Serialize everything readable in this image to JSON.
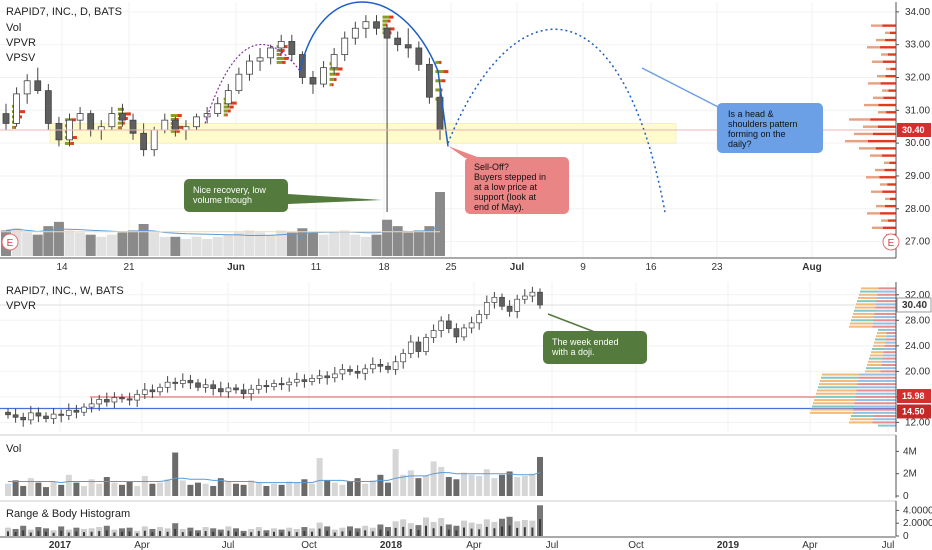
{
  "colors": {
    "up": "#d0d0d0",
    "down": "#5f5f5f",
    "grid": "#f2f2f2",
    "axis": "#555555",
    "zone": "#fffbcc",
    "vp_green": "#8a9a22",
    "vp_red": "#e03a1e",
    "note_green": "#547b3d",
    "note_red": "#ea8585",
    "note_blue": "#6b9fe6",
    "vol_ma": "#5b9bd5",
    "price_red": "#d32f2f",
    "price_line": "#c9a227",
    "blue_line": "#4a6fd9",
    "red_line": "#e05050",
    "arc_purple": "#8a2fa0",
    "arc_blue": "#1e5fc4"
  },
  "chart_data": [
    {
      "type": "candlestick",
      "header": "RAPID7, INC., D, BATS",
      "indicators": [
        "Vol",
        "VPVR",
        "VPSV"
      ],
      "x_ticks": [
        "14",
        "21",
        "Jun",
        "11",
        "18",
        "25",
        "Jul",
        "9",
        "16",
        "23",
        "Aug"
      ],
      "y_ticks": [
        27.0,
        28.0,
        29.0,
        30.0,
        31.0,
        32.0,
        33.0,
        34.0
      ],
      "ylim": [
        26.5,
        34.3
      ],
      "last_price": "30.40",
      "support_zone": [
        30.0,
        30.6
      ],
      "volume_high": 3.0,
      "candles": [
        {
          "o": 30.9,
          "h": 31.2,
          "l": 30.4,
          "c": 30.6,
          "v": 1.2
        },
        {
          "o": 30.6,
          "h": 31.7,
          "l": 30.5,
          "c": 31.5,
          "v": 1.3
        },
        {
          "o": 31.5,
          "h": 32.1,
          "l": 31.2,
          "c": 31.9,
          "v": 1.1
        },
        {
          "o": 31.9,
          "h": 32.3,
          "l": 31.5,
          "c": 31.6,
          "v": 1.0
        },
        {
          "o": 31.6,
          "h": 31.8,
          "l": 30.4,
          "c": 30.6,
          "v": 1.4
        },
        {
          "o": 30.6,
          "h": 30.8,
          "l": 29.9,
          "c": 30.1,
          "v": 1.6
        },
        {
          "o": 30.1,
          "h": 30.9,
          "l": 29.9,
          "c": 30.7,
          "v": 1.2
        },
        {
          "o": 30.7,
          "h": 31.1,
          "l": 30.4,
          "c": 30.9,
          "v": 1.1
        },
        {
          "o": 30.9,
          "h": 31.0,
          "l": 30.2,
          "c": 30.4,
          "v": 1.0
        },
        {
          "o": 30.4,
          "h": 30.7,
          "l": 30.1,
          "c": 30.5,
          "v": 0.9
        },
        {
          "o": 30.5,
          "h": 31.1,
          "l": 30.4,
          "c": 30.9,
          "v": 1.0
        },
        {
          "o": 30.9,
          "h": 31.2,
          "l": 30.5,
          "c": 30.7,
          "v": 1.1
        },
        {
          "o": 30.7,
          "h": 30.9,
          "l": 30.1,
          "c": 30.3,
          "v": 1.2
        },
        {
          "o": 30.3,
          "h": 30.6,
          "l": 29.6,
          "c": 29.8,
          "v": 1.5
        },
        {
          "o": 29.8,
          "h": 30.5,
          "l": 29.6,
          "c": 30.4,
          "v": 1.1
        },
        {
          "o": 30.4,
          "h": 30.9,
          "l": 30.3,
          "c": 30.7,
          "v": 0.9
        },
        {
          "o": 30.7,
          "h": 30.8,
          "l": 30.2,
          "c": 30.4,
          "v": 0.9
        },
        {
          "o": 30.4,
          "h": 30.7,
          "l": 30.1,
          "c": 30.5,
          "v": 0.8
        },
        {
          "o": 30.5,
          "h": 30.9,
          "l": 30.4,
          "c": 30.8,
          "v": 0.9
        },
        {
          "o": 30.8,
          "h": 31.1,
          "l": 30.6,
          "c": 30.9,
          "v": 0.8
        },
        {
          "o": 30.9,
          "h": 31.4,
          "l": 30.8,
          "c": 31.2,
          "v": 0.9
        },
        {
          "o": 31.2,
          "h": 31.8,
          "l": 31.1,
          "c": 31.6,
          "v": 1.0
        },
        {
          "o": 31.6,
          "h": 32.3,
          "l": 31.5,
          "c": 32.1,
          "v": 1.1
        },
        {
          "o": 32.1,
          "h": 32.7,
          "l": 31.9,
          "c": 32.5,
          "v": 1.2
        },
        {
          "o": 32.5,
          "h": 32.9,
          "l": 32.2,
          "c": 32.6,
          "v": 1.1
        },
        {
          "o": 32.6,
          "h": 33.0,
          "l": 32.4,
          "c": 32.9,
          "v": 1.0
        },
        {
          "o": 32.9,
          "h": 33.3,
          "l": 32.7,
          "c": 33.1,
          "v": 1.2
        },
        {
          "o": 33.1,
          "h": 33.3,
          "l": 32.5,
          "c": 32.7,
          "v": 1.1
        },
        {
          "o": 32.7,
          "h": 32.8,
          "l": 31.8,
          "c": 32.0,
          "v": 1.3
        },
        {
          "o": 32.0,
          "h": 32.2,
          "l": 31.5,
          "c": 31.8,
          "v": 1.1
        },
        {
          "o": 31.8,
          "h": 32.5,
          "l": 31.7,
          "c": 32.3,
          "v": 1.0
        },
        {
          "o": 32.3,
          "h": 32.9,
          "l": 32.1,
          "c": 32.7,
          "v": 1.1
        },
        {
          "o": 32.7,
          "h": 33.4,
          "l": 32.5,
          "c": 33.2,
          "v": 1.2
        },
        {
          "o": 33.2,
          "h": 33.7,
          "l": 33.0,
          "c": 33.5,
          "v": 1.0
        },
        {
          "o": 33.5,
          "h": 33.9,
          "l": 33.2,
          "c": 33.7,
          "v": 0.9
        },
        {
          "o": 33.7,
          "h": 33.9,
          "l": 33.3,
          "c": 33.5,
          "v": 1.0
        },
        {
          "o": 33.5,
          "h": 33.6,
          "l": 27.9,
          "c": 33.2,
          "v": 1.7
        },
        {
          "o": 33.2,
          "h": 33.4,
          "l": 32.8,
          "c": 33.0,
          "v": 1.4
        },
        {
          "o": 33.0,
          "h": 33.5,
          "l": 32.6,
          "c": 32.9,
          "v": 1.1
        },
        {
          "o": 32.9,
          "h": 33.1,
          "l": 32.2,
          "c": 32.4,
          "v": 1.2
        },
        {
          "o": 32.4,
          "h": 32.6,
          "l": 31.2,
          "c": 31.4,
          "v": 1.4
        },
        {
          "o": 31.4,
          "h": 31.6,
          "l": 30.1,
          "c": 30.4,
          "v": 3.0
        }
      ]
    },
    {
      "type": "candlestick",
      "header": "RAPID7, INC., W, BATS",
      "indicators": [
        "VPVR"
      ],
      "x_ticks": [
        "2017",
        "Apr",
        "Jul",
        "Oct",
        "2018",
        "Apr",
        "Jul",
        "Oct",
        "2019",
        "Apr",
        "Jul"
      ],
      "y_ticks": [
        12.0,
        16.0,
        20.0,
        24.0,
        28.0,
        32.0
      ],
      "ylim": [
        10.5,
        34.0
      ],
      "last_price": "30.40",
      "level_prices": [
        "15.98",
        "14.50"
      ],
      "levels": [
        15.98,
        14.5
      ],
      "weekly_closes": [
        13.2,
        12.8,
        12.4,
        13.5,
        13.0,
        12.6,
        13.3,
        13.1,
        13.9,
        13.6,
        14.4,
        14.9,
        15.6,
        15.2,
        15.9,
        15.7,
        15.5,
        16.4,
        17.1,
        16.8,
        17.5,
        18.3,
        18.1,
        18.6,
        18.2,
        17.5,
        17.9,
        17.3,
        16.8,
        17.4,
        17.1,
        16.5,
        17.2,
        17.8,
        17.6,
        18.1,
        17.9,
        18.3,
        18.7,
        18.4,
        18.9,
        19.3,
        19.0,
        19.6,
        20.3,
        20.0,
        19.7,
        20.4,
        21.1,
        20.8,
        20.3,
        21.5,
        22.8,
        24.6,
        23.1,
        25.3,
        26.4,
        27.9,
        26.7,
        25.4,
        26.8,
        27.6,
        28.9,
        30.8,
        31.6,
        30.2,
        29.4,
        31.3,
        31.8,
        32.4,
        30.4
      ]
    },
    {
      "type": "bar",
      "header": "Vol",
      "y_ticks": [
        "0",
        "2M",
        "4M"
      ],
      "ylim": [
        0,
        5.2
      ],
      "values": [
        1.1,
        1.4,
        0.9,
        1.6,
        1.2,
        0.8,
        1.3,
        1.0,
        1.9,
        1.2,
        0.9,
        1.5,
        1.1,
        1.7,
        1.2,
        1.0,
        1.3,
        0.9,
        1.8,
        1.1,
        1.2,
        1.5,
        3.9,
        1.4,
        1.0,
        1.2,
        1.1,
        0.9,
        1.6,
        1.3,
        1.1,
        1.0,
        1.4,
        1.2,
        0.9,
        1.1,
        1.0,
        1.3,
        1.2,
        1.5,
        1.1,
        3.4,
        1.4,
        1.2,
        1.0,
        1.3,
        1.6,
        1.1,
        1.4,
        1.9,
        1.2,
        4.2,
        1.9,
        2.3,
        1.6,
        1.8,
        3.1,
        2.6,
        1.7,
        1.5,
        2.1,
        1.9,
        1.8,
        2.4,
        1.6,
        1.9,
        2.2,
        1.7,
        1.8,
        2.0,
        3.5
      ],
      "ma": [
        1.3,
        1.3,
        1.3,
        1.3,
        1.3,
        1.3,
        1.3,
        1.2,
        1.3,
        1.3,
        1.3,
        1.3,
        1.3,
        1.3,
        1.3,
        1.3,
        1.3,
        1.3,
        1.3,
        1.3,
        1.3,
        1.4,
        1.6,
        1.6,
        1.5,
        1.5,
        1.5,
        1.4,
        1.4,
        1.3,
        1.3,
        1.3,
        1.3,
        1.2,
        1.2,
        1.2,
        1.2,
        1.2,
        1.2,
        1.2,
        1.2,
        1.4,
        1.4,
        1.4,
        1.4,
        1.3,
        1.3,
        1.3,
        1.3,
        1.4,
        1.4,
        1.6,
        1.7,
        1.8,
        1.8,
        1.8,
        2.0,
        2.1,
        2.1,
        2.0,
        2.0,
        2.0,
        2.0,
        2.0,
        2.0,
        2.0,
        2.0,
        1.9,
        1.9,
        1.9,
        2.1
      ]
    },
    {
      "type": "bar",
      "header": "Range & Body Histogram",
      "y_ticks": [
        "0",
        "2.0000",
        "4.0000"
      ],
      "ylim": [
        0,
        5.0
      ],
      "values": [
        1.3,
        1.1,
        1.6,
        1.0,
        1.4,
        1.2,
        0.9,
        1.5,
        1.0,
        1.3,
        1.1,
        1.2,
        1.4,
        1.6,
        1.0,
        1.2,
        1.3,
        0.8,
        1.5,
        1.1,
        1.4,
        1.2,
        2.0,
        1.1,
        1.3,
        0.9,
        1.4,
        1.2,
        1.0,
        1.5,
        1.2,
        0.8,
        1.1,
        1.4,
        0.9,
        1.2,
        1.0,
        1.3,
        1.1,
        1.4,
        1.2,
        2.1,
        1.5,
        1.0,
        1.3,
        1.5,
        1.2,
        1.6,
        1.3,
        1.8,
        1.4,
        2.3,
        2.6,
        2.0,
        1.7,
        2.9,
        2.2,
        2.8,
        1.8,
        1.6,
        2.4,
        2.1,
        1.9,
        2.6,
        2.2,
        2.7,
        3.0,
        2.3,
        2.5,
        2.4,
        4.8
      ]
    }
  ],
  "annotations": [
    {
      "name": "nice-recovery",
      "text": [
        "Nice recovery, low",
        "volume though"
      ]
    },
    {
      "name": "sell-off",
      "text": [
        "Sell-Off?",
        "Buyers stepped in",
        "at a low price at",
        "support (look at",
        "end of May)."
      ]
    },
    {
      "name": "head-shoulders",
      "text": [
        "Is a head &",
        "shoulders pattern",
        "forming on the",
        "daily?"
      ]
    },
    {
      "name": "week-doji",
      "text": [
        "The week ended",
        "with a doji."
      ]
    }
  ],
  "earnings_marker": "E"
}
